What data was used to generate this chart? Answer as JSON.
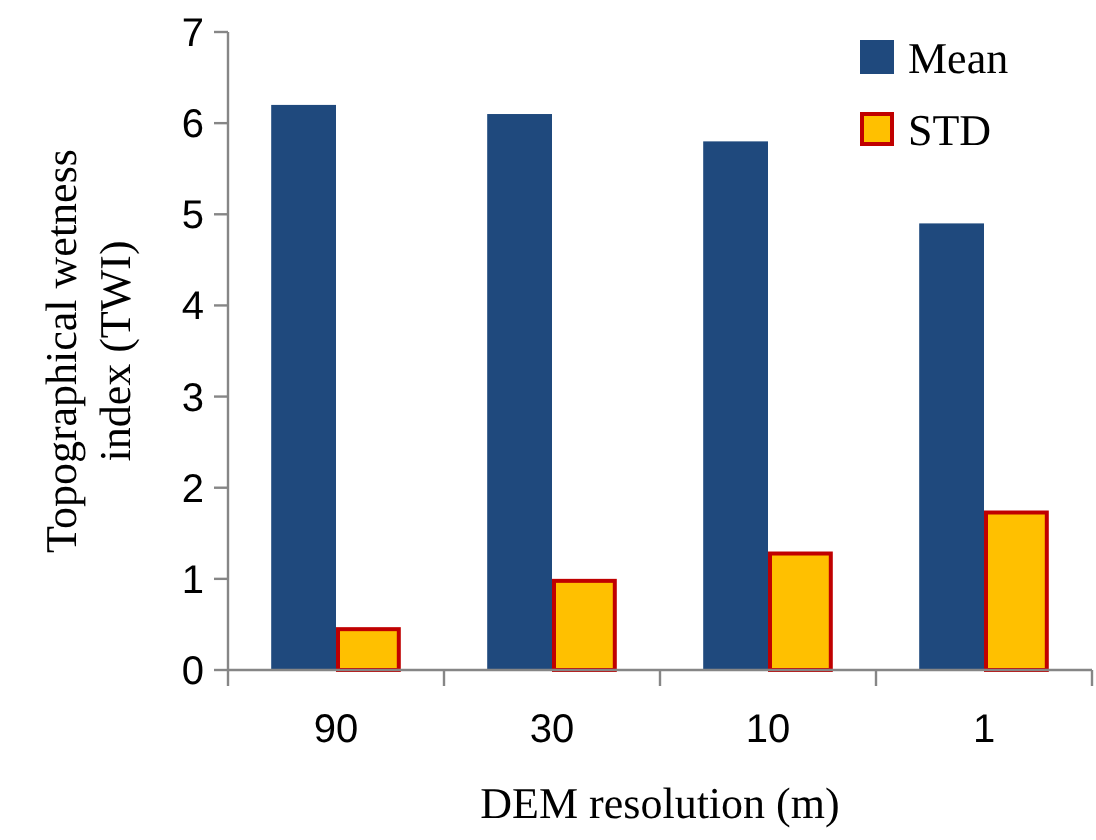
{
  "chart_data": {
    "type": "bar",
    "xlabel": "DEM resolution (m)",
    "ylabel": "Topographical wetness index (TWI)",
    "categories": [
      "90",
      "30",
      "10",
      "1"
    ],
    "series": [
      {
        "name": "Mean",
        "color": "#1f497d",
        "values": [
          6.2,
          6.1,
          5.8,
          4.9
        ]
      },
      {
        "name": "STD",
        "color": "#ffc000",
        "values": [
          0.47,
          1.0,
          1.3,
          1.75
        ]
      }
    ],
    "ylim": [
      0,
      7
    ],
    "yticks": [
      0,
      1,
      2,
      3,
      4,
      5,
      6,
      7
    ],
    "grid": false,
    "legend": "top right"
  }
}
